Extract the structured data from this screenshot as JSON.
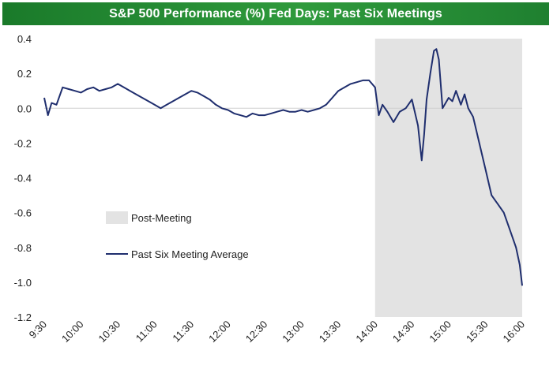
{
  "title": "S&P 500 Performance (%) Fed Days: Past Six Meetings",
  "colors": {
    "title_bg": "#238a33",
    "title_text": "#ffffff",
    "line": "#1f2e6e",
    "shade": "#e3e3e3",
    "zero_line": "#d0d0d0"
  },
  "chart_data": {
    "type": "line",
    "title": "S&P 500 Performance (%) Fed Days: Past Six Meetings",
    "xlabel": "",
    "ylabel": "",
    "ylim": [
      -1.2,
      0.4
    ],
    "yticks": [
      0.4,
      0.2,
      0.0,
      -0.2,
      -0.4,
      -0.6,
      -0.8,
      -1.0,
      -1.2
    ],
    "ytick_labels": [
      "0.4",
      "0.2",
      "0.0",
      "-0.2",
      "-0.4",
      "-0.6",
      "-0.8",
      "-1.0",
      "-1.2"
    ],
    "xlim": [
      "9:30",
      "16:00"
    ],
    "xticks": [
      "9:30",
      "10:00",
      "10:30",
      "11:00",
      "11:30",
      "12:00",
      "12:30",
      "13:00",
      "13:30",
      "14:00",
      "14:30",
      "15:00",
      "15:30",
      "16:00"
    ],
    "grid": false,
    "shaded_region": {
      "label": "Post-Meeting",
      "from": "14:00",
      "to": "16:00"
    },
    "legend": {
      "placement": "center-left",
      "entries": [
        {
          "label": "Post-Meeting",
          "kind": "area"
        },
        {
          "label": "Past Six Meeting Average",
          "kind": "line"
        }
      ]
    },
    "series": [
      {
        "name": "Past Six Meeting Average",
        "x": [
          "9:30",
          "9:33",
          "9:36",
          "9:40",
          "9:45",
          "9:50",
          "9:55",
          "10:00",
          "10:05",
          "10:10",
          "10:15",
          "10:20",
          "10:25",
          "10:30",
          "10:35",
          "10:40",
          "10:45",
          "10:50",
          "10:55",
          "11:00",
          "11:05",
          "11:10",
          "11:15",
          "11:20",
          "11:25",
          "11:30",
          "11:35",
          "11:40",
          "11:45",
          "11:50",
          "11:55",
          "12:00",
          "12:05",
          "12:10",
          "12:15",
          "12:20",
          "12:25",
          "12:30",
          "12:35",
          "12:40",
          "12:45",
          "12:50",
          "12:55",
          "13:00",
          "13:05",
          "13:10",
          "13:15",
          "13:20",
          "13:25",
          "13:30",
          "13:35",
          "13:40",
          "13:45",
          "13:50",
          "13:55",
          "14:00",
          "14:03",
          "14:06",
          "14:10",
          "14:15",
          "14:20",
          "14:25",
          "14:30",
          "14:35",
          "14:38",
          "14:40",
          "14:42",
          "14:45",
          "14:48",
          "14:50",
          "14:52",
          "14:55",
          "15:00",
          "15:03",
          "15:06",
          "15:10",
          "15:13",
          "15:16",
          "15:20",
          "15:25",
          "15:30",
          "15:35",
          "15:40",
          "15:45",
          "15:50",
          "15:55",
          "15:58",
          "16:00"
        ],
        "values": [
          0.06,
          -0.04,
          0.03,
          0.02,
          0.12,
          0.11,
          0.1,
          0.09,
          0.11,
          0.12,
          0.1,
          0.11,
          0.12,
          0.14,
          0.12,
          0.1,
          0.08,
          0.06,
          0.04,
          0.02,
          0.0,
          0.02,
          0.04,
          0.06,
          0.08,
          0.1,
          0.09,
          0.07,
          0.05,
          0.02,
          0.0,
          -0.01,
          -0.03,
          -0.04,
          -0.05,
          -0.03,
          -0.04,
          -0.04,
          -0.03,
          -0.02,
          -0.01,
          -0.02,
          -0.02,
          -0.01,
          -0.02,
          -0.01,
          0.0,
          0.02,
          0.06,
          0.1,
          0.12,
          0.14,
          0.15,
          0.16,
          0.16,
          0.12,
          -0.04,
          0.02,
          -0.02,
          -0.08,
          -0.02,
          0.0,
          0.05,
          -0.1,
          -0.3,
          -0.15,
          0.05,
          0.2,
          0.33,
          0.34,
          0.28,
          0.0,
          0.06,
          0.04,
          0.1,
          0.02,
          0.08,
          0.0,
          -0.05,
          -0.2,
          -0.35,
          -0.5,
          -0.55,
          -0.6,
          -0.7,
          -0.8,
          -0.9,
          -1.02
        ]
      }
    ]
  }
}
